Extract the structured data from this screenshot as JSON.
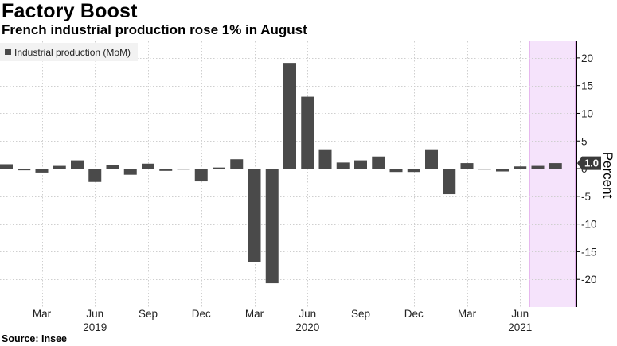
{
  "chart_data": {
    "type": "bar",
    "title": "Factory Boost",
    "subtitle": "French industrial production rose 1% in August",
    "source": "Source: Insee",
    "ylabel": "Percent",
    "ylim": [
      -25,
      23
    ],
    "yticks": [
      20,
      15,
      10,
      5,
      0,
      -5,
      -10,
      -15,
      -20
    ],
    "ytick_labels": [
      "20",
      "15",
      "10",
      "5",
      "0",
      "-5",
      "-10",
      "-15",
      "-20"
    ],
    "grid": true,
    "legend_position": "top-left",
    "series": [
      {
        "name": "Industrial production (MoM)",
        "color": "#4a4a4a",
        "values": [
          0.8,
          -0.3,
          -0.7,
          0.5,
          1.5,
          -2.4,
          0.7,
          -1.1,
          0.9,
          -0.4,
          -0.1,
          -2.3,
          0.2,
          1.7,
          -16.9,
          -20.7,
          19.1,
          13.0,
          3.5,
          1.1,
          1.5,
          2.2,
          -0.6,
          -0.6,
          3.5,
          -4.6,
          1.0,
          -0.1,
          -0.5,
          0.4,
          0.5,
          1.0
        ]
      }
    ],
    "x": [
      "2019-01",
      "2019-02",
      "2019-03",
      "2019-04",
      "2019-05",
      "2019-06",
      "2019-07",
      "2019-08",
      "2019-09",
      "2019-10",
      "2019-11",
      "2019-12",
      "2020-01",
      "2020-02",
      "2020-03",
      "2020-04",
      "2020-05",
      "2020-06",
      "2020-07",
      "2020-08",
      "2020-09",
      "2020-10",
      "2020-11",
      "2020-12",
      "2021-01",
      "2021-02",
      "2021-03",
      "2021-04",
      "2021-05",
      "2021-06",
      "2021-07",
      "2021-08"
    ],
    "xtick_labels": [
      {
        "label": "Mar",
        "x": "2019-03"
      },
      {
        "label": "Jun",
        "x": "2019-06"
      },
      {
        "label": "Sep",
        "x": "2019-09"
      },
      {
        "label": "Dec",
        "x": "2019-12"
      },
      {
        "label": "Mar",
        "x": "2020-03"
      },
      {
        "label": "Jun",
        "x": "2020-06"
      },
      {
        "label": "Sep",
        "x": "2020-09"
      },
      {
        "label": "Dec",
        "x": "2020-12"
      },
      {
        "label": "Mar",
        "x": "2021-03"
      },
      {
        "label": "Jun",
        "x": "2021-06"
      }
    ],
    "year_labels": [
      {
        "label": "2019",
        "x": "2019-06"
      },
      {
        "label": "2020",
        "x": "2020-06"
      },
      {
        "label": "2021",
        "x": "2021-06"
      }
    ],
    "highlight": {
      "from": "2021-07",
      "to": "2021-08",
      "color": "#f5e3fb",
      "border": "#d48ae0"
    },
    "last_value_label": "1.0"
  }
}
